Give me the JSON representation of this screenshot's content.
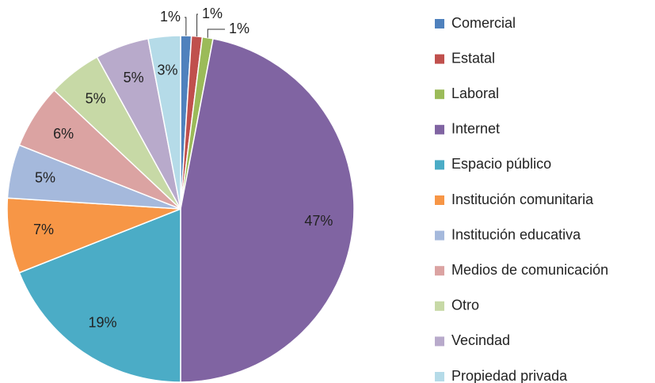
{
  "chart_data": {
    "type": "pie",
    "categories": [
      "Comercial",
      "Estatal",
      "Laboral",
      "Internet",
      "Espacio público",
      "Institución comunitaria",
      "Institución educativa",
      "Medios de comunicación",
      "Otro",
      "Vecindad",
      "Propiedad privada"
    ],
    "values": [
      1,
      1,
      1,
      47,
      19,
      7,
      5,
      6,
      5,
      5,
      3
    ],
    "value_labels": [
      "1%",
      "1%",
      "1%",
      "47%",
      "19%",
      "7%",
      "5%",
      "6%",
      "5%",
      "5%",
      "3%"
    ],
    "colors": [
      "#4f81bd",
      "#c0504d",
      "#9bbb59",
      "#8064a2",
      "#4bacc6",
      "#f79646",
      "#a5b9dc",
      "#dba3a2",
      "#c7d9a6",
      "#b8aacb",
      "#b5dbe8"
    ],
    "legend": "right"
  }
}
